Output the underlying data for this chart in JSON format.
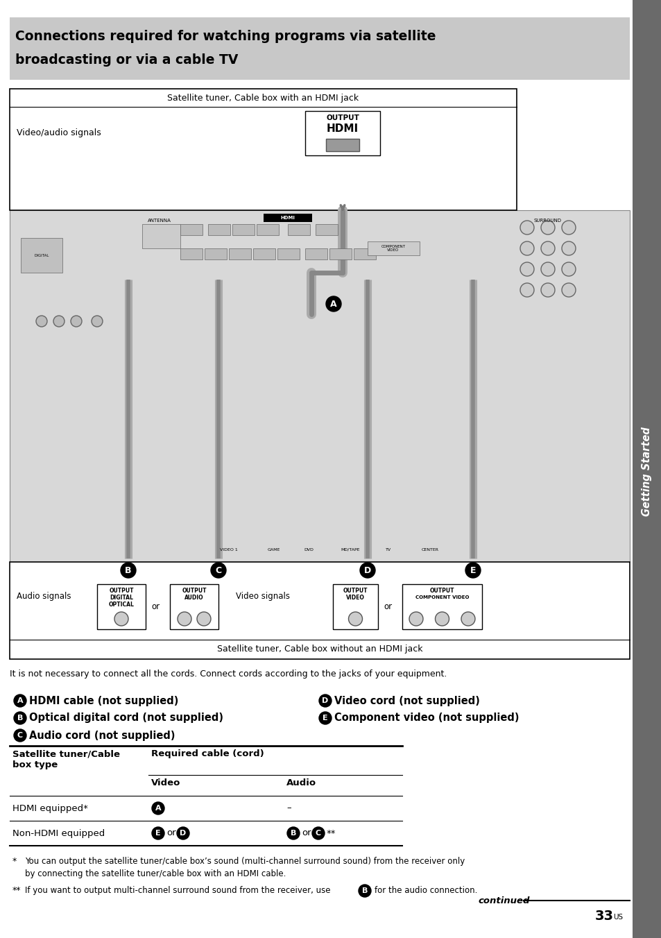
{
  "page_bg": "#ffffff",
  "header_bg": "#c8c8c8",
  "sidebar_bg": "#6a6a6a",
  "sidebar_text": "Getting Started",
  "header_line1": "Connections required for watching programs via satellite",
  "header_line2": "broadcasting or via a cable TV",
  "top_box_label": "Satellite tuner, Cable box with an HDMI jack",
  "top_box_sublabel": "Video/audio signals",
  "output_label_line1": "OUTPUT",
  "output_label_line2": "HDMI",
  "bottom_box_label": "Satellite tuner, Cable box without an HDMI jack",
  "audio_signals": "Audio signals",
  "video_signals": "Video signals",
  "out_digital_optical_1": "OUTPUT",
  "out_digital_optical_2": "DIGITAL",
  "out_digital_optical_3": "OPTICAL",
  "out_audio_1": "OUTPUT",
  "out_audio_2": "AUDIO",
  "out_video_1": "OUTPUT",
  "out_video_2": "VIDEO",
  "out_comp_1": "OUTPUT",
  "out_comp_2": "COMPONENT VIDEO",
  "or_text": "or",
  "label_A": "A",
  "label_B": "B",
  "label_C": "C",
  "label_D": "D",
  "label_E": "E",
  "intro_text": "It is not necessary to connect all the cords. Connect cords according to the jacks of your equipment.",
  "bA_text": "HDMI cable (not supplied)",
  "bB_text": "Optical digital cord (not supplied)",
  "bC_text": "Audio cord (not supplied)",
  "bD_text": "Video cord (not supplied)",
  "bE_text": "Component video (not supplied)",
  "tbl_col1": "Satellite tuner/Cable\nbox type",
  "tbl_col2": "Required cable (cord)",
  "tbl_sub_video": "Video",
  "tbl_sub_audio": "Audio",
  "tbl_r1c1": "HDMI equipped*",
  "tbl_r1c2v": "A",
  "tbl_r1c2a": "–",
  "tbl_r2c1": "Non-HDMI equipped",
  "tbl_r2c2v_1": "E",
  "tbl_r2c2v_or": " or ",
  "tbl_r2c2v_2": "D",
  "tbl_r2c2a_1": "B",
  "tbl_r2c2a_or": " or ",
  "tbl_r2c2a_2": "C",
  "tbl_r2c2a_ss": "**",
  "fn1_star": "*",
  "fn1_line1": "You can output the satellite tuner/cable box’s sound (multi-channel surround sound) from the receiver only",
  "fn1_line2": "by connecting the satellite tuner/cable box with an HDMI cable.",
  "fn2_star": "**",
  "fn2_line1": "If you want to output multi-channel surround sound from the receiver, use",
  "fn2_B": "B",
  "fn2_line2": "for the audio connection.",
  "continued": "continued",
  "page_num": "33",
  "page_num_sup": "US"
}
